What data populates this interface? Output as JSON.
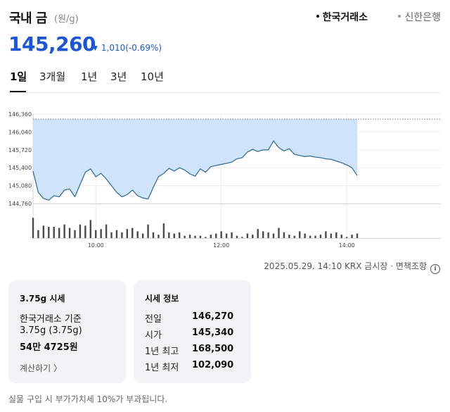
{
  "header": {
    "title": "국내 금",
    "unit": "(원/g)",
    "sources": [
      "한국거래소",
      "신한은행"
    ]
  },
  "price": {
    "current": "145,260",
    "change": "1,010(-0.69%)",
    "direction": "down"
  },
  "tabs": [
    {
      "label": "1일",
      "active": true
    },
    {
      "label": "3개월",
      "active": false
    },
    {
      "label": "1년",
      "active": false
    },
    {
      "label": "3년",
      "active": false
    },
    {
      "label": "10년",
      "active": false
    }
  ],
  "chart_data": {
    "type": "area",
    "title": "",
    "xlabel": "",
    "ylabel": "",
    "y_ticks": [
      "146,360",
      "146,040",
      "145,720",
      "145,400",
      "145,080",
      "144,760"
    ],
    "ylim": [
      144760,
      146360
    ],
    "x_ticks": [
      "10:00",
      "12:00",
      "14:00"
    ],
    "xlim": [
      "09:00",
      "15:30"
    ],
    "reference_value": 146270,
    "series": [
      {
        "x": [
          "09:00",
          "09:05",
          "09:10",
          "09:15",
          "09:20",
          "09:25",
          "09:30",
          "09:35",
          "09:40",
          "09:45",
          "09:50",
          "09:55",
          "10:00",
          "10:05",
          "10:10",
          "10:15",
          "10:20",
          "10:25",
          "10:30",
          "10:35",
          "10:40",
          "10:45",
          "10:50",
          "10:55",
          "11:00",
          "11:05",
          "11:10",
          "11:15",
          "11:20",
          "11:25",
          "11:30",
          "11:35",
          "11:40",
          "11:45",
          "11:50",
          "11:55",
          "12:00",
          "12:05",
          "12:10",
          "12:15",
          "12:20",
          "12:25",
          "12:30",
          "12:35",
          "12:40",
          "12:45",
          "12:50",
          "12:55",
          "13:00",
          "13:05",
          "13:10",
          "13:15",
          "13:20",
          "13:25",
          "13:30",
          "13:35",
          "13:40",
          "13:45",
          "13:50",
          "13:55",
          "14:00",
          "14:05",
          "14:10"
        ],
        "y": [
          145340,
          144960,
          144850,
          144820,
          144900,
          144880,
          145000,
          145020,
          144880,
          145100,
          145320,
          145380,
          145240,
          145300,
          145200,
          145080,
          144960,
          144880,
          144920,
          145000,
          144900,
          144860,
          144840,
          145050,
          145240,
          145300,
          145390,
          145340,
          145400,
          145360,
          145290,
          145250,
          145380,
          145320,
          145420,
          145440,
          145460,
          145480,
          145500,
          145560,
          145580,
          145680,
          145730,
          145690,
          145720,
          145720,
          145880,
          145760,
          145700,
          145740,
          145640,
          145620,
          145600,
          145610,
          145590,
          145580,
          145560,
          145550,
          145520,
          145490,
          145450,
          145400,
          145260
        ]
      }
    ],
    "volume": [
      18,
      7,
      11,
      10,
      10,
      9,
      12,
      9,
      7,
      12,
      11,
      16,
      7,
      8,
      12,
      5,
      7,
      5,
      8,
      9,
      6,
      4,
      12,
      5,
      3,
      13,
      5,
      4,
      5,
      2,
      3,
      2,
      2,
      1,
      3,
      4,
      6,
      4,
      5,
      2,
      1,
      4,
      3,
      8,
      6,
      5,
      4,
      9,
      5,
      3,
      2,
      6,
      4,
      2,
      2,
      3,
      6,
      4,
      5,
      3,
      1,
      3,
      4
    ]
  },
  "timestamp": {
    "text": "2025.05.29. 14:10 KRX 금시장 · 면책조항",
    "info_icon": "info-icon"
  },
  "card_gram": {
    "title": "3.75g 시세",
    "line1": "한국거래소 기준",
    "line2": "3.75g (3.75g)",
    "amount": "54만 4725원",
    "link": "계산하기 〉"
  },
  "card_info": {
    "title": "시세 정보",
    "rows": [
      {
        "label": "전일",
        "value": "146,270"
      },
      {
        "label": "시가",
        "value": "145,340"
      },
      {
        "label": "1년 최고",
        "value": "168,500"
      },
      {
        "label": "1년 최저",
        "value": "102,090"
      }
    ]
  },
  "note": "실물 구입 시 부가가치세 10%가 부과됩니다.",
  "colors": {
    "accent_blue": "#1b56d6",
    "chart_fill": "#cfe3fb",
    "chart_line": "#3a6f95",
    "volume_bar": "#4a4a4a"
  }
}
